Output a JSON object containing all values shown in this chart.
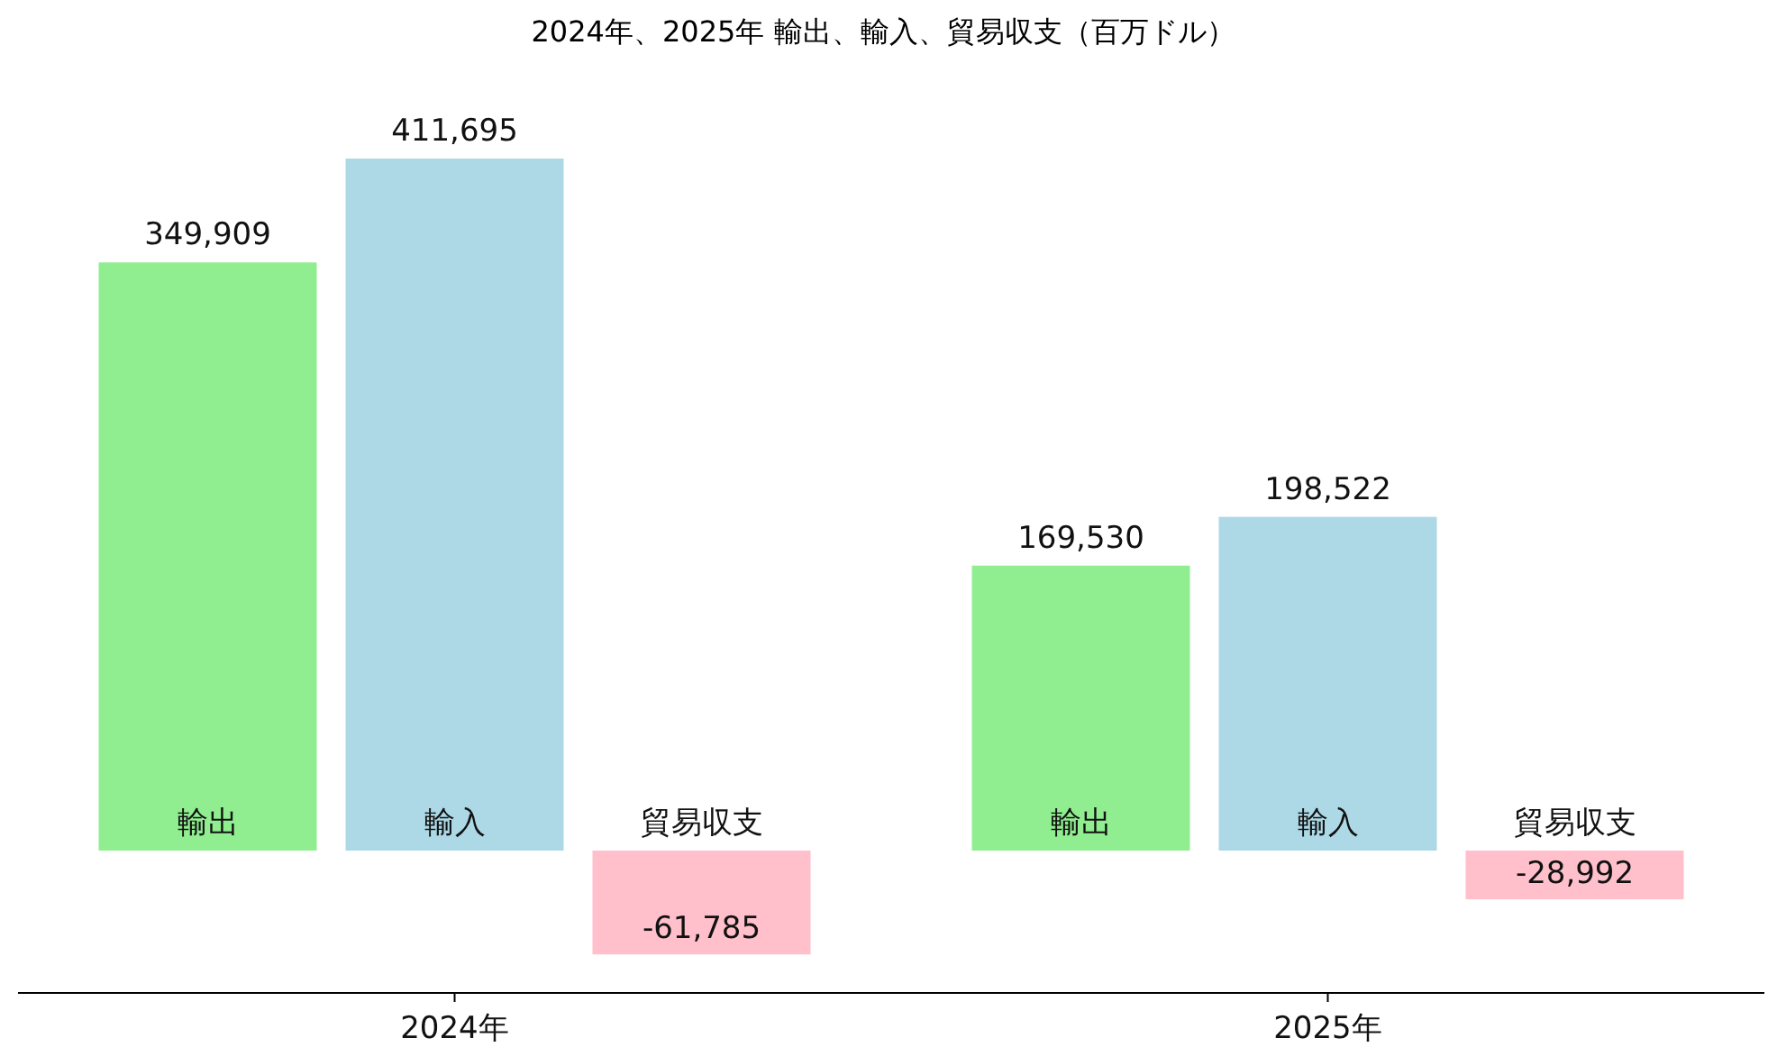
{
  "chart_data": {
    "type": "bar",
    "title": "2024年、2025年 輸出、輸入、貿易収支（百万ドル）",
    "categories": [
      "2024年",
      "2025年"
    ],
    "series": [
      {
        "name": "輸出",
        "color": "#90ee90",
        "values": [
          349909,
          169530
        ],
        "value_labels": [
          "349,909",
          "169,530"
        ]
      },
      {
        "name": "輸入",
        "color": "#add8e6",
        "values": [
          411695,
          198522
        ],
        "value_labels": [
          "411,695",
          "198,522"
        ]
      },
      {
        "name": "貿易収支",
        "color": "#ffc0cb",
        "values": [
          -61785,
          -28992
        ],
        "value_labels": [
          "-61,785",
          "-28,992"
        ]
      }
    ],
    "legend": false,
    "grid": false
  }
}
